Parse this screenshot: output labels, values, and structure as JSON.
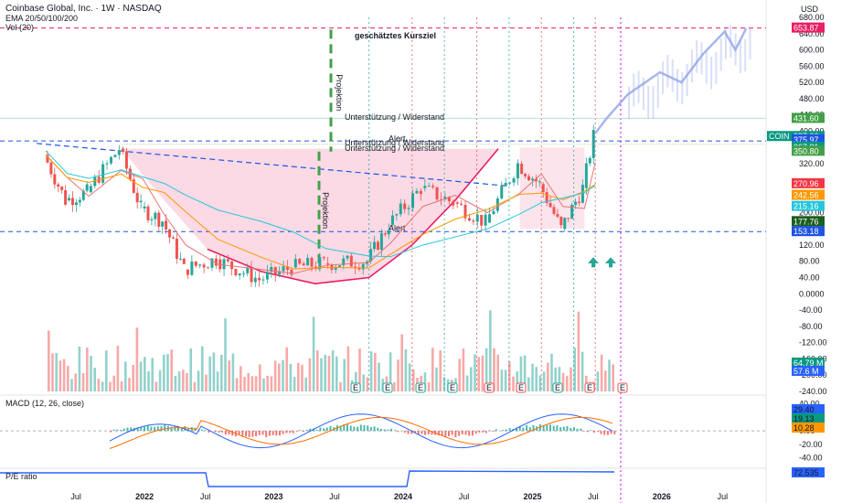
{
  "header": {
    "title": "Coinbase Global, Inc. · 1W · NASDAQ",
    "ema": "EMA 20/50/100/200",
    "vol": "Vol (20)",
    "currency": "USD"
  },
  "panes": {
    "macd_label": "MACD (12, 26, close)",
    "pe_label": "P/E ratio"
  },
  "annotations": {
    "target": "geschätztes Kursziel",
    "projection_top": "Projektion",
    "projection_bottom": "Projektion",
    "support1": "Unterstützung / Widerstand",
    "support2": "Unterstützung / Widerstand",
    "support3": "Unterstützung / Widerstand",
    "alert1": "Alert",
    "alert2": "Alert"
  },
  "colors": {
    "up": "#26a69a",
    "down": "#ef5350",
    "cup_fill": "#f8bbd0",
    "projection": "#43a047",
    "target": "#e91e63",
    "dashed_blue": "#1e53e5",
    "ema20": "#e57373",
    "ema50": "#ff9800",
    "ema100": "#26c6da",
    "ema200": "#2e7d32",
    "macd": "#2962ff",
    "signal": "#ff6d00",
    "pe": "#2962ff",
    "forecast": "#90a4e8"
  },
  "chart_data": [
    {
      "type": "candlestick",
      "title": "Coinbase Global, Inc. · 1W · NASDAQ",
      "y_axis_ticks": [
        680,
        640,
        600,
        560,
        520,
        480,
        440,
        400,
        320,
        200,
        160,
        120,
        80,
        40,
        0,
        -40,
        -80,
        -120,
        -160,
        -200,
        -240
      ],
      "x_axis_ticks": [
        "Jul",
        "2022",
        "Jul",
        "2023",
        "Jul",
        "2024",
        "Jul",
        "2025",
        "Jul",
        "2026",
        "Jul"
      ],
      "ylim": [
        -240,
        680
      ],
      "price_tags": [
        {
          "label": "653.87",
          "value": 653.87,
          "color": "#e91e63"
        },
        {
          "label": "431.60",
          "value": 431.6,
          "color": "#43a047"
        },
        {
          "label": "COIN",
          "value": 387.06,
          "color": "#089981"
        },
        {
          "label": "387.06",
          "value": 387.06,
          "color": "#089981"
        },
        {
          "label": "375.97",
          "value": 375.97,
          "color": "#1e53e5"
        },
        {
          "label": "367.81",
          "value": 367.81,
          "color": "#089981"
        },
        {
          "label": "350.80",
          "value": 350.8,
          "color": "#43a047"
        },
        {
          "label": "270.96",
          "value": 270.96,
          "color": "#f23645"
        },
        {
          "label": "242.56",
          "value": 242.56,
          "color": "#ff9800"
        },
        {
          "label": "215.16",
          "value": 215.16,
          "color": "#26c6da"
        },
        {
          "label": "177.76",
          "value": 177.76,
          "color": "#1b5e20"
        },
        {
          "label": "153.18",
          "value": 153.18,
          "color": "#1e53e5"
        },
        {
          "label": "64.79 M",
          "value": -184,
          "color": "#089981"
        },
        {
          "label": "57.6 M",
          "value": -203,
          "color": "#2962ff"
        }
      ],
      "ohlc_weekly_close_samples": [
        {
          "date": "2021-04",
          "close": 342
        },
        {
          "date": "2021-06",
          "close": 230
        },
        {
          "date": "2021-08",
          "close": 250
        },
        {
          "date": "2021-11",
          "close": 357
        },
        {
          "date": "2022-01",
          "close": 210
        },
        {
          "date": "2022-03",
          "close": 180
        },
        {
          "date": "2022-05",
          "close": 60
        },
        {
          "date": "2022-08",
          "close": 85
        },
        {
          "date": "2022-12",
          "close": 35
        },
        {
          "date": "2023-03",
          "close": 65
        },
        {
          "date": "2023-06",
          "close": 75
        },
        {
          "date": "2023-10",
          "close": 80
        },
        {
          "date": "2023-12",
          "close": 170
        },
        {
          "date": "2024-03",
          "close": 260
        },
        {
          "date": "2024-06",
          "close": 225
        },
        {
          "date": "2024-09",
          "close": 175
        },
        {
          "date": "2024-12",
          "close": 320
        },
        {
          "date": "2025-02",
          "close": 270
        },
        {
          "date": "2025-04",
          "close": 160
        },
        {
          "date": "2025-06",
          "close": 260
        },
        {
          "date": "2025-07",
          "close": 387
        }
      ],
      "forecast_path": [
        {
          "date": "2025-07",
          "value": 395
        },
        {
          "date": "2025-08",
          "value": 430
        },
        {
          "date": "2025-10",
          "value": 490
        },
        {
          "date": "2026-01",
          "value": 545
        },
        {
          "date": "2026-03",
          "value": 520
        },
        {
          "date": "2026-05",
          "value": 590
        },
        {
          "date": "2026-07",
          "value": 645
        },
        {
          "date": "2026-08",
          "value": 600
        },
        {
          "date": "2026-09",
          "value": 653
        }
      ],
      "earnings_markers": [
        "E",
        "E",
        "E",
        "E",
        "E",
        "E",
        "E",
        "E",
        "E"
      ]
    },
    {
      "type": "bar",
      "title": "MACD (12, 26, close)",
      "y_axis_ticks": [
        40,
        0,
        -20,
        -40
      ],
      "ylim": [
        -50,
        45
      ],
      "tags": [
        {
          "label": "29.40",
          "value": 29.4,
          "color": "#2962ff"
        },
        {
          "label": "19.13",
          "value": 19.13,
          "color": "#089981"
        },
        {
          "label": "10.28",
          "value": 10.28,
          "color": "#ff9800"
        }
      ]
    },
    {
      "type": "line",
      "title": "P/E ratio",
      "tags": [
        {
          "label": "72.535",
          "value": 72.535,
          "color": "#2962ff"
        }
      ]
    }
  ]
}
